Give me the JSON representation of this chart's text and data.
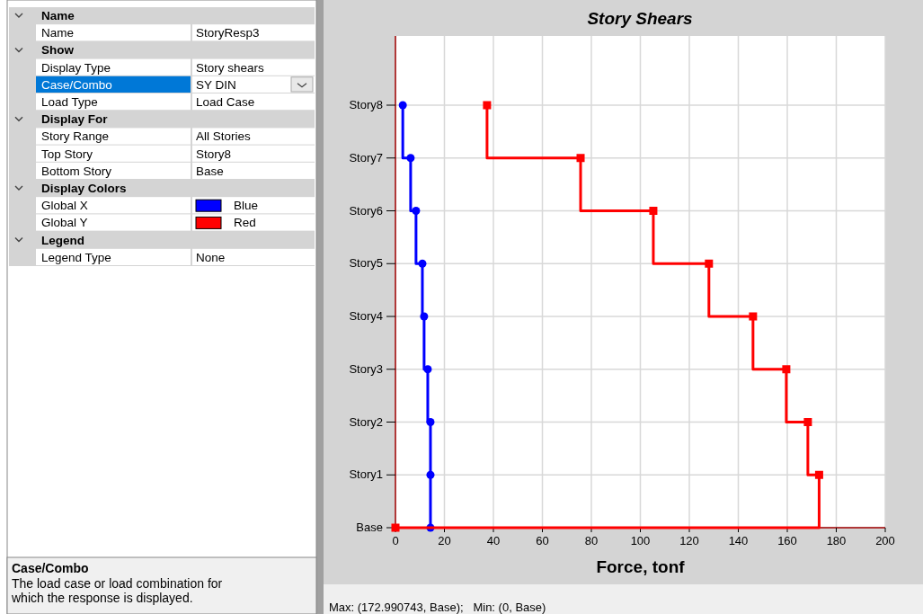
{
  "chart_data": [
    {
      "type": "step",
      "orientation": "horizontal",
      "title": "Story Shears",
      "xlabel": "Force, tonf",
      "categories": [
        "Story8",
        "Story7",
        "Story6",
        "Story5",
        "Story4",
        "Story3",
        "Story2",
        "Story1",
        "Base"
      ],
      "xlim": [
        0,
        200
      ],
      "xticks": [
        0,
        20,
        40,
        60,
        80,
        100,
        120,
        140,
        160,
        180,
        200
      ],
      "grid": true,
      "series": [
        {
          "color": "#0000ff",
          "marker": "circle",
          "values": [
            3,
            6.2,
            8.4,
            11,
            11.7,
            13.2,
            14.3,
            14.3,
            14.3
          ]
        },
        {
          "color": "#ff0000",
          "marker": "square",
          "values": [
            37.4,
            75.6,
            105.3,
            128,
            146,
            159.6,
            168.4,
            173,
            0
          ]
        }
      ],
      "annotations": [
        "Max: (172.990743, Base);   Min: (0, Base)"
      ]
    },
    {
      "type": "other",
      "categories": [
        "Name",
        "Name",
        "Show",
        "Display Type",
        "Case/Combo",
        "Load Type",
        "Display For",
        "Story Range",
        "Top Story",
        "Bottom Story",
        "Display Colors",
        "Global X",
        "Global Y",
        "Legend",
        "Legend Type"
      ],
      "cell_labels": [
        [
          null
        ],
        [
          "StoryResp3"
        ],
        [
          null
        ],
        [
          "Story shears"
        ],
        [
          "SY DIN"
        ],
        [
          "Load Case"
        ],
        [
          null
        ],
        [
          "All Stories"
        ],
        [
          "Story8"
        ],
        [
          "Base"
        ],
        [
          null
        ],
        [
          "Blue"
        ],
        [
          "Red"
        ],
        [
          null
        ],
        [
          "None"
        ]
      ],
      "annotations": [
        "Case/Combo",
        "The load case or load combination for which the response is displayed."
      ]
    }
  ]
}
